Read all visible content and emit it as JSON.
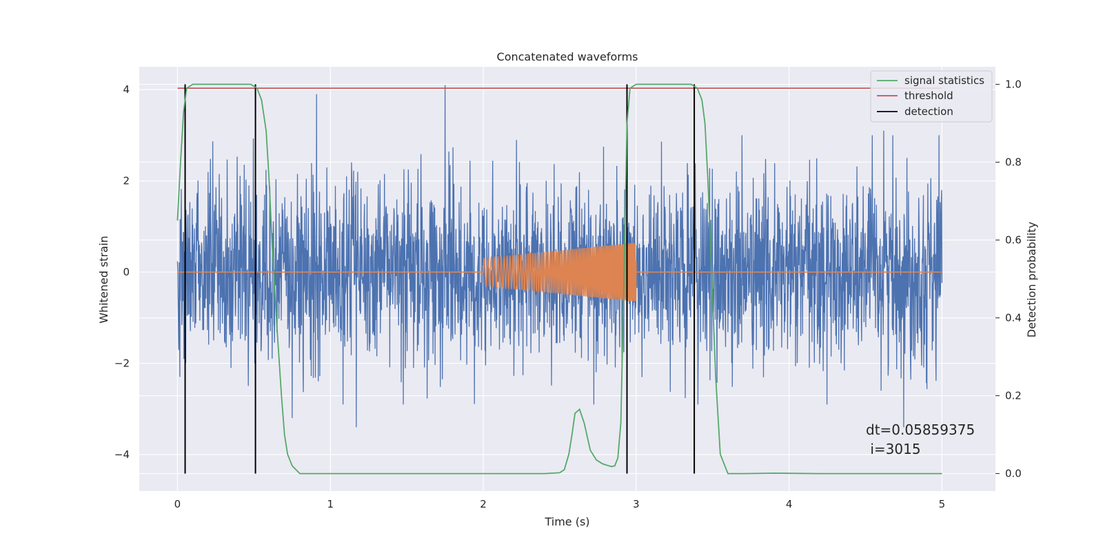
{
  "chart_data": {
    "type": "line",
    "title": "Concatenated waveforms",
    "xlabel": "Time (s)",
    "ylabel": "Whitened strain",
    "y2label": "Detection probability",
    "xlim": [
      -0.25,
      5.35
    ],
    "ylim": [
      -4.8,
      4.5
    ],
    "y2lim": [
      -0.045,
      1.045
    ],
    "xticks": [
      0,
      1,
      2,
      3,
      4,
      5
    ],
    "xtick_labels": [
      "0",
      "1",
      "2",
      "3",
      "4",
      "5"
    ],
    "yticks": [
      -4,
      -2,
      0,
      2,
      4
    ],
    "ytick_labels": [
      "−4",
      "−2",
      "0",
      "2",
      "4"
    ],
    "y2ticks": [
      0.0,
      0.2,
      0.4,
      0.6,
      0.8,
      1.0
    ],
    "y2tick_labels": [
      "0.0",
      "0.2",
      "0.4",
      "0.6",
      "0.8",
      "1.0"
    ],
    "grid": true,
    "legend_position": "top-right",
    "colors": {
      "strain": "#4c72b0",
      "injection": "#dd8452",
      "signal_statistics": "#55a868",
      "threshold": "#c44e52",
      "detection": "#000000",
      "background": "#eaeaf2",
      "grid": "#ffffff"
    },
    "series": [
      {
        "name": "signal statistics",
        "axis": "right",
        "x": [
          0.0,
          0.02,
          0.04,
          0.06,
          0.1,
          0.2,
          0.3,
          0.4,
          0.48,
          0.52,
          0.55,
          0.58,
          0.6,
          0.62,
          0.65,
          0.68,
          0.7,
          0.72,
          0.75,
          0.8,
          1.0,
          1.5,
          2.0,
          2.4,
          2.5,
          2.53,
          2.56,
          2.58,
          2.6,
          2.63,
          2.66,
          2.7,
          2.74,
          2.78,
          2.82,
          2.84,
          2.86,
          2.88,
          2.9,
          2.92,
          2.94,
          2.96,
          3.0,
          3.1,
          3.2,
          3.3,
          3.36,
          3.4,
          3.43,
          3.45,
          3.47,
          3.49,
          3.52,
          3.55,
          3.6,
          3.7,
          3.9,
          4.2,
          4.6,
          5.0
        ],
        "values": [
          0.65,
          0.8,
          0.93,
          0.99,
          1.0,
          1.0,
          1.0,
          1.0,
          1.0,
          0.99,
          0.96,
          0.88,
          0.75,
          0.58,
          0.38,
          0.2,
          0.1,
          0.05,
          0.02,
          0.0,
          0.0,
          0.0,
          0.0,
          0.0,
          0.002,
          0.01,
          0.05,
          0.1,
          0.155,
          0.165,
          0.13,
          0.06,
          0.035,
          0.025,
          0.02,
          0.018,
          0.02,
          0.04,
          0.13,
          0.5,
          0.9,
          0.99,
          1.0,
          1.0,
          1.0,
          1.0,
          1.0,
          0.99,
          0.96,
          0.9,
          0.75,
          0.55,
          0.25,
          0.05,
          0.0,
          0.0,
          0.001,
          0.0,
          0.0,
          0.0
        ]
      },
      {
        "name": "threshold",
        "axis": "right",
        "x": [
          0.0,
          5.0
        ],
        "values": [
          0.99,
          0.99
        ]
      },
      {
        "name": "detection",
        "axis": "right",
        "x_positions": [
          0.05,
          0.51,
          2.94,
          3.38
        ],
        "range": [
          0.0,
          1.0
        ]
      },
      {
        "name": "",
        "label_hint": "strain",
        "axis": "left",
        "x_range": [
          0.0,
          5.0
        ],
        "std": 1.0,
        "notable_peaks": [
          {
            "x": 0.75,
            "y": -3.2
          },
          {
            "x": 0.91,
            "y": 3.9
          },
          {
            "x": 1.75,
            "y": 4.1
          },
          {
            "x": 1.17,
            "y": -3.4
          },
          {
            "x": 4.75,
            "y": -3.4
          },
          {
            "x": 4.62,
            "y": 3.1
          },
          {
            "x": 4.98,
            "y": 3.0
          }
        ]
      },
      {
        "name": "",
        "label_hint": "injected chirp",
        "axis": "left",
        "x_range": [
          2.0,
          3.0
        ],
        "amplitude_start": 0.3,
        "amplitude_end": 0.65,
        "freq_start_hz": 40,
        "freq_end_hz": 120,
        "elsewhere": 0
      }
    ],
    "legend": [
      "signal statistics",
      "threshold",
      "detection"
    ],
    "annotation": "dt=0.05859375\n i=3015",
    "annotation_lines": [
      "dt=0.05859375",
      " i=3015"
    ]
  }
}
